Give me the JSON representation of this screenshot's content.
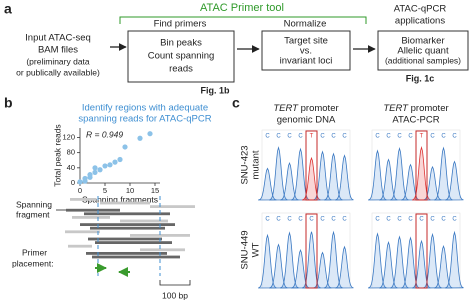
{
  "panel_a": {
    "label": "a",
    "tool_title": "ATAC Primer tool",
    "input": [
      "Input ATAC-seq",
      "BAM files",
      "(preliminary data",
      "or publically available)"
    ],
    "steps": [
      {
        "header": [
          "Find primers"
        ],
        "box": [
          "Bin peaks",
          "Count spanning",
          "reads"
        ],
        "ref": "Fig. 1b"
      },
      {
        "header": [
          "Normalize"
        ],
        "box": [
          "Target site",
          "vs.",
          "invariant loci"
        ]
      },
      {
        "header": [
          "ATAC-qPCR",
          "applications"
        ],
        "box": [
          "Biomarker",
          "Allelic quant",
          "(additional samples)"
        ],
        "ref": "Fig. 1c"
      }
    ]
  },
  "panel_b": {
    "label": "b",
    "caption": [
      "Identify regions with adequate",
      "spanning reads for ATAC-qPCR"
    ],
    "fragment_label": [
      "Spanning",
      "fragment"
    ],
    "primer_label": [
      "Primer",
      "placement:"
    ],
    "scale": "100 bp"
  },
  "chart_data": {
    "type": "scatter",
    "xlabel": "Spanning fragments",
    "ylabel": "Total peak reads",
    "annotation": "R = 0.949",
    "x": [
      0,
      1,
      1,
      2,
      2,
      3,
      3,
      4,
      5,
      6,
      7,
      8,
      9,
      12,
      14
    ],
    "values": [
      3,
      5,
      12,
      15,
      22,
      28,
      40,
      35,
      45,
      48,
      55,
      62,
      95,
      118,
      130
    ],
    "color": "#8cc2e8",
    "xlim": [
      0,
      16
    ],
    "ylim": [
      0,
      145
    ],
    "xticks": [
      0,
      5,
      10,
      15
    ],
    "yticks": [
      0,
      40,
      80,
      120
    ]
  },
  "panel_c": {
    "label": "c",
    "columns": [
      {
        "gene": "TERT",
        "title": "promoter",
        "subtitle": "genomic DNA"
      },
      {
        "gene": "TERT",
        "title": "promoter",
        "subtitle": "ATAC-PCR"
      }
    ],
    "rows": [
      {
        "name": "SNU-423",
        "status": "mutant",
        "bases": [
          "C",
          "C",
          "C",
          "C",
          "T",
          "C",
          "C",
          "C"
        ]
      },
      {
        "name": "SNU-449",
        "status": "WT",
        "bases": [
          "C",
          "C",
          "C",
          "C",
          "C",
          "C",
          "C",
          "C"
        ]
      }
    ]
  }
}
